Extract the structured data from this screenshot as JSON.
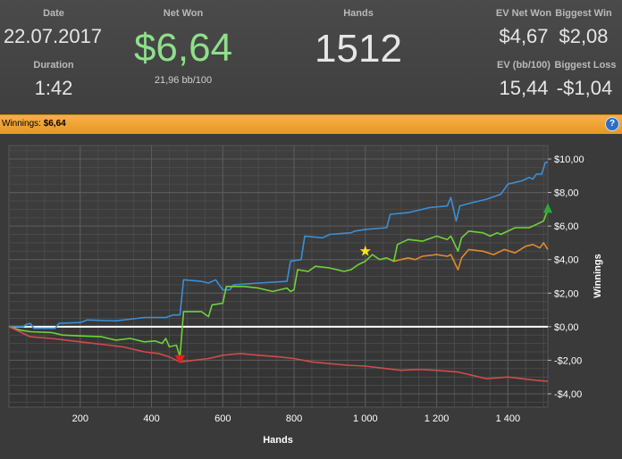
{
  "stats": {
    "date_label": "Date",
    "date_value": "22.07.2017",
    "duration_label": "Duration",
    "duration_value": "1:42",
    "net_won_label": "Net Won",
    "net_won_value": "$6,64",
    "net_won_sub": "21,96 bb/100",
    "hands_label": "Hands",
    "hands_value": "1512",
    "ev_net_label": "EV Net Won",
    "ev_net_value": "$4,67",
    "biggest_win_label": "Biggest Win",
    "biggest_win_value": "$2,08",
    "ev_bb_label": "EV (bb/100)",
    "ev_bb_value": "15,44",
    "biggest_loss_label": "Biggest Loss",
    "biggest_loss_value": "-$1,04"
  },
  "bar": {
    "label": "Winnings:",
    "value": "$6,64",
    "help_glyph": "?"
  },
  "colors": {
    "net_won": "#8ee08a",
    "blue": "#3b8fd6",
    "green": "#6fd13a",
    "orange": "#e08a2e",
    "red": "#d24a4a"
  },
  "chart_data": {
    "type": "line",
    "xlabel": "Hands",
    "ylabel": "Winnings",
    "xlim": [
      0,
      1512
    ],
    "ylim": [
      -4.8,
      10.8
    ],
    "x_ticks": [
      200,
      400,
      600,
      800,
      1000,
      1200,
      1400
    ],
    "x_tick_labels": [
      "200",
      "400",
      "600",
      "800",
      "1 000",
      "1 200",
      "1 400"
    ],
    "y_ticks": [
      10,
      8,
      6,
      4,
      2,
      0,
      -2,
      -4
    ],
    "y_tick_labels": [
      "$10,00",
      "$8,00",
      "$6,00",
      "$4,00",
      "$2,00",
      "$0,00",
      "-$2,00",
      "-$4,00"
    ],
    "grid": true,
    "series": [
      {
        "key": "blue",
        "points": [
          [
            0,
            0
          ],
          [
            40,
            0
          ],
          [
            50,
            0.15
          ],
          [
            60,
            0.2
          ],
          [
            70,
            -0.1
          ],
          [
            130,
            -0.1
          ],
          [
            140,
            0.2
          ],
          [
            200,
            0.25
          ],
          [
            220,
            0.4
          ],
          [
            300,
            0.35
          ],
          [
            360,
            0.5
          ],
          [
            380,
            0.55
          ],
          [
            440,
            0.55
          ],
          [
            460,
            0.7
          ],
          [
            480,
            0.7
          ],
          [
            490,
            2.8
          ],
          [
            540,
            2.7
          ],
          [
            560,
            2.6
          ],
          [
            580,
            2.8
          ],
          [
            600,
            2.2
          ],
          [
            620,
            2.2
          ],
          [
            630,
            2.5
          ],
          [
            700,
            2.6
          ],
          [
            780,
            2.7
          ],
          [
            790,
            3.9
          ],
          [
            820,
            4.0
          ],
          [
            830,
            5.4
          ],
          [
            880,
            5.3
          ],
          [
            900,
            5.5
          ],
          [
            960,
            5.6
          ],
          [
            970,
            5.7
          ],
          [
            1000,
            5.8
          ],
          [
            1060,
            5.9
          ],
          [
            1070,
            6.7
          ],
          [
            1120,
            6.8
          ],
          [
            1160,
            7.0
          ],
          [
            1180,
            7.1
          ],
          [
            1230,
            7.2
          ],
          [
            1240,
            7.7
          ],
          [
            1255,
            6.3
          ],
          [
            1265,
            7.2
          ],
          [
            1300,
            7.4
          ],
          [
            1340,
            7.6
          ],
          [
            1380,
            7.9
          ],
          [
            1400,
            8.5
          ],
          [
            1420,
            8.6
          ],
          [
            1440,
            8.7
          ],
          [
            1460,
            8.9
          ],
          [
            1470,
            8.8
          ],
          [
            1480,
            9.1
          ],
          [
            1495,
            9.1
          ],
          [
            1505,
            9.8
          ],
          [
            1512,
            9.8
          ]
        ]
      },
      {
        "key": "orange",
        "points": [
          [
            1080,
            3.9
          ],
          [
            1100,
            4.0
          ],
          [
            1120,
            4.1
          ],
          [
            1140,
            4.0
          ],
          [
            1160,
            4.2
          ],
          [
            1200,
            4.3
          ],
          [
            1230,
            4.2
          ],
          [
            1240,
            4.3
          ],
          [
            1260,
            3.4
          ],
          [
            1270,
            4.1
          ],
          [
            1290,
            4.6
          ],
          [
            1330,
            4.5
          ],
          [
            1360,
            4.3
          ],
          [
            1390,
            4.6
          ],
          [
            1420,
            4.4
          ],
          [
            1450,
            4.8
          ],
          [
            1470,
            4.9
          ],
          [
            1490,
            4.7
          ],
          [
            1500,
            5.0
          ],
          [
            1512,
            4.6
          ]
        ]
      },
      {
        "key": "green",
        "points": [
          [
            0,
            0
          ],
          [
            30,
            -0.2
          ],
          [
            60,
            -0.3
          ],
          [
            120,
            -0.35
          ],
          [
            150,
            -0.5
          ],
          [
            200,
            -0.55
          ],
          [
            260,
            -0.6
          ],
          [
            300,
            -0.8
          ],
          [
            340,
            -0.7
          ],
          [
            380,
            -0.9
          ],
          [
            410,
            -0.85
          ],
          [
            430,
            -1.0
          ],
          [
            440,
            -0.7
          ],
          [
            450,
            -1.2
          ],
          [
            470,
            -1.1
          ],
          [
            480,
            -1.8
          ],
          [
            490,
            0.9
          ],
          [
            540,
            0.9
          ],
          [
            560,
            0.6
          ],
          [
            570,
            1.3
          ],
          [
            600,
            1.4
          ],
          [
            610,
            2.4
          ],
          [
            660,
            2.4
          ],
          [
            700,
            2.3
          ],
          [
            740,
            2.1
          ],
          [
            780,
            2.3
          ],
          [
            790,
            2.1
          ],
          [
            800,
            2.2
          ],
          [
            810,
            3.4
          ],
          [
            840,
            3.3
          ],
          [
            860,
            3.6
          ],
          [
            900,
            3.5
          ],
          [
            940,
            3.3
          ],
          [
            960,
            3.4
          ],
          [
            980,
            3.7
          ],
          [
            1000,
            3.9
          ],
          [
            1020,
            4.3
          ],
          [
            1040,
            4.0
          ],
          [
            1060,
            4.1
          ],
          [
            1080,
            3.9
          ],
          [
            1090,
            4.9
          ],
          [
            1120,
            5.2
          ],
          [
            1160,
            5.1
          ],
          [
            1200,
            5.4
          ],
          [
            1230,
            5.2
          ],
          [
            1240,
            5.4
          ],
          [
            1260,
            4.5
          ],
          [
            1270,
            5.3
          ],
          [
            1290,
            5.7
          ],
          [
            1330,
            5.6
          ],
          [
            1350,
            5.4
          ],
          [
            1370,
            5.6
          ],
          [
            1380,
            5.5
          ],
          [
            1420,
            5.9
          ],
          [
            1460,
            5.9
          ],
          [
            1480,
            6.1
          ],
          [
            1500,
            6.3
          ],
          [
            1512,
            7.0
          ]
        ]
      },
      {
        "key": "red",
        "points": [
          [
            0,
            0
          ],
          [
            60,
            -0.6
          ],
          [
            120,
            -0.7
          ],
          [
            200,
            -0.9
          ],
          [
            280,
            -1.1
          ],
          [
            320,
            -1.2
          ],
          [
            380,
            -1.5
          ],
          [
            420,
            -1.6
          ],
          [
            450,
            -1.8
          ],
          [
            480,
            -2.1
          ],
          [
            520,
            -2.0
          ],
          [
            560,
            -1.9
          ],
          [
            600,
            -1.7
          ],
          [
            650,
            -1.6
          ],
          [
            700,
            -1.7
          ],
          [
            760,
            -1.8
          ],
          [
            800,
            -1.9
          ],
          [
            850,
            -2.1
          ],
          [
            900,
            -2.2
          ],
          [
            950,
            -2.3
          ],
          [
            1000,
            -2.35
          ],
          [
            1060,
            -2.5
          ],
          [
            1100,
            -2.6
          ],
          [
            1150,
            -2.55
          ],
          [
            1200,
            -2.6
          ],
          [
            1260,
            -2.7
          ],
          [
            1300,
            -2.9
          ],
          [
            1340,
            -3.1
          ],
          [
            1400,
            -3.0
          ],
          [
            1440,
            -3.1
          ],
          [
            1480,
            -3.2
          ],
          [
            1512,
            -3.25
          ]
        ]
      }
    ],
    "markers": [
      {
        "kind": "star",
        "x": 1000,
        "y": 4.5,
        "color": "#ffe21a"
      },
      {
        "kind": "down-triangle",
        "x": 480,
        "y": -1.8,
        "color": "#e02020"
      },
      {
        "kind": "up-triangle",
        "x": 1512,
        "y": 7.0,
        "color": "#2ea83a"
      }
    ]
  }
}
